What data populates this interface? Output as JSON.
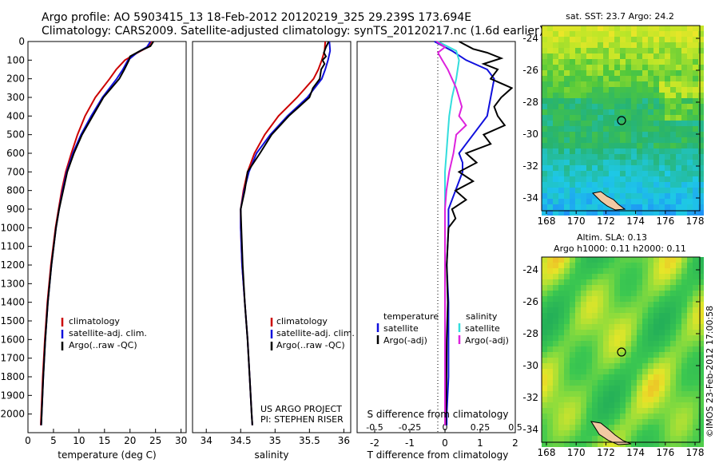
{
  "header": {
    "line1": "Argo profile: AO 5903415_13 18-Feb-2012 20120219_325 29.239S 173.694E",
    "line2": "Climatology: CARS2009. Satellite-adjusted climatology: synTS_20120217.nc (1.6d earlier)"
  },
  "colors": {
    "climatology": "#cc0000",
    "satellite": "#1010dd",
    "argo": "#000000",
    "sal_satellite": "#33dddd",
    "sal_argo": "#dd22dd"
  },
  "chart_data": [
    {
      "type": "line",
      "name": "temperature-panel",
      "xlabel": "temperature (deg C)",
      "ylabel": "",
      "xlim": [
        0,
        31
      ],
      "ylim": [
        2100,
        0
      ],
      "xticks": [
        "0",
        "5",
        "10",
        "15",
        "20",
        "25",
        "30"
      ],
      "yticks": [
        "0",
        "100",
        "200",
        "300",
        "400",
        "500",
        "600",
        "700",
        "800",
        "900",
        "1000",
        "1100",
        "1200",
        "1300",
        "1400",
        "1500",
        "1600",
        "1700",
        "1800",
        "1900",
        "2000"
      ],
      "legend": [
        "climatology",
        "satellite-adj. clim.",
        "Argo(..raw -QC)"
      ],
      "series": [
        {
          "name": "climatology",
          "depth": [
            0,
            30,
            60,
            100,
            150,
            200,
            300,
            400,
            500,
            600,
            700,
            800,
            900,
            1000,
            1200,
            1400,
            1600,
            1800,
            2000,
            2060
          ],
          "values": [
            24.2,
            23.5,
            21.5,
            19.0,
            17.3,
            16.0,
            13.2,
            11.2,
            9.7,
            8.5,
            7.4,
            6.6,
            6.0,
            5.4,
            4.5,
            3.8,
            3.3,
            2.9,
            2.6,
            2.5
          ]
        },
        {
          "name": "satellite-adj. clim.",
          "depth": [
            0,
            30,
            60,
            100,
            150,
            200,
            300,
            400,
            500,
            600,
            700,
            800,
            900,
            1000,
            1200,
            1400,
            1600,
            1800,
            2000,
            2060
          ],
          "values": [
            24.0,
            23.3,
            21.4,
            19.6,
            18.6,
            17.4,
            14.6,
            12.4,
            10.4,
            8.8,
            7.6,
            6.8,
            6.1,
            5.5,
            4.6,
            3.9,
            3.4,
            3.0,
            2.7,
            2.6
          ]
        },
        {
          "name": "Argo(..raw -QC)",
          "depth": [
            0,
            25,
            50,
            80,
            100,
            150,
            200,
            300,
            400,
            500,
            600,
            700,
            800,
            900,
            1000,
            1200,
            1400,
            1600,
            1800,
            2000,
            2060
          ],
          "values": [
            24.6,
            24.0,
            22.0,
            20.0,
            19.8,
            18.9,
            17.9,
            14.8,
            12.7,
            10.6,
            9.0,
            7.7,
            6.9,
            6.1,
            5.5,
            4.6,
            3.9,
            3.4,
            3.0,
            2.7,
            2.6
          ]
        }
      ]
    },
    {
      "type": "line",
      "name": "salinity-panel",
      "xlabel": "salinity",
      "xlim": [
        33.8,
        36.1
      ],
      "ylim": [
        2100,
        0
      ],
      "xticks": [
        "34",
        "34.5",
        "35",
        "35.5",
        "36"
      ],
      "legend": [
        "climatology",
        "satellite-adj. clim.",
        "Argo(..raw -QC)"
      ],
      "annotation": [
        "US ARGO PROJECT",
        "PI: STEPHEN RISER"
      ],
      "series": [
        {
          "name": "climatology",
          "depth": [
            0,
            50,
            100,
            150,
            200,
            300,
            400,
            500,
            600,
            700,
            800,
            900,
            1000,
            1200,
            1400,
            1600,
            1800,
            2000,
            2060
          ],
          "values": [
            35.73,
            35.72,
            35.68,
            35.63,
            35.56,
            35.32,
            35.05,
            34.85,
            34.7,
            34.6,
            34.54,
            34.5,
            34.5,
            34.52,
            34.56,
            34.6,
            34.63,
            34.66,
            34.67
          ]
        },
        {
          "name": "satellite-adj. clim.",
          "depth": [
            0,
            50,
            100,
            150,
            200,
            300,
            400,
            500,
            600,
            700,
            800,
            900,
            1000,
            1200,
            1400,
            1600,
            1800,
            2000,
            2060
          ],
          "values": [
            35.79,
            35.8,
            35.77,
            35.73,
            35.68,
            35.47,
            35.18,
            34.93,
            34.73,
            34.62,
            34.55,
            34.5,
            34.5,
            34.52,
            34.56,
            34.6,
            34.63,
            34.66,
            34.67
          ]
        },
        {
          "name": "Argo(..raw -QC)",
          "depth": [
            0,
            30,
            60,
            80,
            100,
            120,
            150,
            200,
            250,
            300,
            350,
            400,
            500,
            600,
            700,
            800,
            900,
            1000,
            1200,
            1400,
            1600,
            1800,
            2000,
            2060
          ],
          "values": [
            35.78,
            35.74,
            35.71,
            35.74,
            35.69,
            35.72,
            35.67,
            35.65,
            35.55,
            35.5,
            35.35,
            35.2,
            34.95,
            34.78,
            34.6,
            34.56,
            34.5,
            34.51,
            34.53,
            34.56,
            34.6,
            34.63,
            34.66,
            34.67
          ]
        }
      ]
    },
    {
      "type": "line",
      "name": "difference-panel",
      "xlabel": "T difference from climatology",
      "xlabel_top": "S difference from climatology",
      "xlim": [
        -2.5,
        2.0
      ],
      "ylim": [
        2100,
        0
      ],
      "xticks": [
        "-2",
        "-1",
        "0",
        "1",
        "2"
      ],
      "xticks_top": [
        "-0.5",
        "-0.25",
        "0",
        "0.25",
        "0.5"
      ],
      "legend_headers": [
        "temperature",
        "salinity"
      ],
      "legend": [
        "satellite",
        "Argo(-adj)",
        "satellite",
        "Argo(-adj)"
      ],
      "series": [
        {
          "name": "temperature satellite",
          "depth": [
            0,
            50,
            100,
            150,
            200,
            300,
            400,
            500,
            550,
            600,
            650,
            700,
            750,
            800,
            850,
            900,
            1000,
            1200,
            1400,
            1600,
            1800,
            2000,
            2060
          ],
          "values": [
            -0.3,
            0.2,
            0.6,
            1.2,
            1.4,
            1.3,
            1.2,
            0.8,
            0.6,
            0.4,
            0.5,
            0.5,
            0.4,
            0.3,
            0.2,
            0.1,
            0.1,
            0.05,
            0.1,
            0.1,
            0.1,
            0.05,
            0.05
          ]
        },
        {
          "name": "temperature Argo(-adj)",
          "depth": [
            0,
            40,
            60,
            90,
            120,
            150,
            200,
            250,
            300,
            350,
            400,
            450,
            500,
            550,
            600,
            650,
            700,
            750,
            800,
            850,
            900,
            950,
            1000,
            1200,
            1400,
            1600,
            1800,
            2000,
            2060
          ],
          "values": [
            0.4,
            0.8,
            1.2,
            1.6,
            1.1,
            1.5,
            1.3,
            1.9,
            1.6,
            1.4,
            1.5,
            1.7,
            1.1,
            1.3,
            0.6,
            0.9,
            0.4,
            0.8,
            0.3,
            0.6,
            0.2,
            0.3,
            0.1,
            0.05,
            0.08,
            0.05,
            0.04,
            0.03,
            0.02
          ]
        },
        {
          "name": "salinity satellite",
          "depth": [
            0,
            50,
            100,
            200,
            300,
            400,
            500,
            600,
            700,
            800,
            900,
            1000,
            1200,
            1400,
            1600,
            1800,
            2000,
            2060
          ],
          "values": [
            -0.05,
            0.08,
            0.1,
            0.08,
            0.05,
            0.03,
            0.02,
            0.01,
            0.0,
            0.0,
            0.0,
            0.0,
            0.0,
            0.0,
            0.0,
            0.0,
            0.0,
            0.0
          ]
        },
        {
          "name": "salinity Argo(-adj)",
          "depth": [
            0,
            30,
            60,
            100,
            150,
            200,
            250,
            300,
            350,
            400,
            450,
            500,
            600,
            700,
            800,
            900,
            1000,
            1200,
            1400,
            1600,
            1800,
            2000,
            2060
          ],
          "values": [
            -0.06,
            0.0,
            -0.05,
            -0.02,
            0.02,
            0.05,
            0.08,
            0.1,
            0.12,
            0.1,
            0.15,
            0.08,
            0.06,
            0.03,
            0.01,
            0.0,
            0.0,
            0.0,
            0.0,
            0.0,
            0.0,
            0.0,
            0.0
          ]
        }
      ]
    },
    {
      "type": "heatmap",
      "name": "sst-map",
      "title": "sat. SST: 23.7  Argo: 24.2",
      "xticks": [
        "168",
        "170",
        "172",
        "174",
        "176",
        "178"
      ],
      "yticks": [
        "-24",
        "-26",
        "-28",
        "-30",
        "-32",
        "-34"
      ],
      "marker": {
        "lon": 173.694,
        "lat": -29.239
      }
    },
    {
      "type": "heatmap",
      "name": "sla-map",
      "title": "Altim. SLA: 0.13",
      "subtitle": "Argo h1000: 0.11  h2000: 0.11",
      "xticks": [
        "168",
        "170",
        "172",
        "174",
        "176",
        "178"
      ],
      "yticks": [
        "-24",
        "-26",
        "-28",
        "-30",
        "-32",
        "-34"
      ],
      "marker": {
        "lon": 173.694,
        "lat": -29.239
      }
    }
  ],
  "footer": {
    "credit": "©IMOS 23-Feb-2012 17:00:58"
  }
}
